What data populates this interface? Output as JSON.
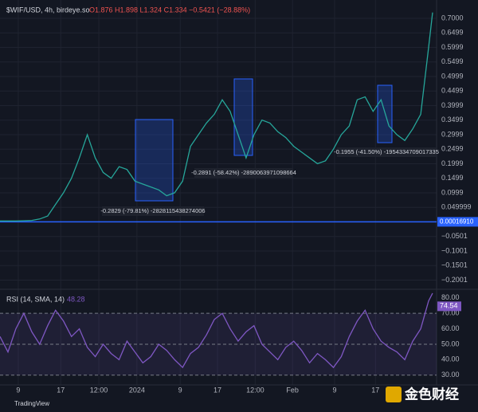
{
  "chart_data": {
    "type": "line",
    "title": "$WIF/USD, 4h, birdeye.so",
    "ohlc_text": "O1.876 H1.898 L1.324 C1.334 −0.5421 (−28.88%)",
    "x": [
      0,
      2,
      4,
      6,
      8,
      10,
      12,
      14,
      16,
      18,
      20,
      22,
      24,
      26,
      28,
      30,
      32,
      34,
      36,
      38,
      40,
      42,
      44,
      46,
      48,
      50,
      52,
      54,
      56,
      58,
      60,
      62,
      64,
      66,
      68,
      70,
      72,
      74,
      76,
      78,
      80,
      82,
      84,
      86,
      88,
      90,
      92,
      94,
      96,
      98,
      100,
      102,
      104,
      106,
      108,
      109
    ],
    "series": [
      {
        "name": "$WIF/USD",
        "color": "#26a69a",
        "values": [
          0.003,
          0.003,
          0.003,
          0.004,
          0.005,
          0.01,
          0.02,
          0.06,
          0.1,
          0.15,
          0.22,
          0.3,
          0.22,
          0.17,
          0.15,
          0.19,
          0.18,
          0.14,
          0.13,
          0.12,
          0.11,
          0.09,
          0.1,
          0.14,
          0.26,
          0.3,
          0.34,
          0.37,
          0.42,
          0.38,
          0.3,
          0.22,
          0.3,
          0.35,
          0.34,
          0.31,
          0.29,
          0.26,
          0.24,
          0.22,
          0.2,
          0.21,
          0.25,
          0.3,
          0.33,
          0.42,
          0.43,
          0.38,
          0.42,
          0.33,
          0.3,
          0.28,
          0.32,
          0.37,
          0.6,
          0.72
        ]
      },
      {
        "name": "RSI (14, SMA, 14)",
        "color": "#7e57c2",
        "axis": "y2",
        "values": [
          55,
          45,
          60,
          70,
          58,
          50,
          62,
          72,
          65,
          55,
          60,
          48,
          42,
          50,
          44,
          40,
          52,
          45,
          38,
          42,
          50,
          46,
          40,
          35,
          44,
          48,
          56,
          66,
          70,
          60,
          52,
          58,
          62,
          50,
          45,
          40,
          48,
          52,
          46,
          38,
          44,
          40,
          35,
          42,
          55,
          65,
          72,
          60,
          52,
          48,
          45,
          40,
          52,
          60,
          78,
          83
        ]
      }
    ],
    "rsi_value_label": "48.28",
    "xlim": [
      0,
      110
    ],
    "xticks": [
      {
        "value": 4.6,
        "label": "9"
      },
      {
        "value": 15.3,
        "label": "17"
      },
      {
        "value": 24.9,
        "label": "12:00"
      },
      {
        "value": 34.5,
        "label": "2024"
      },
      {
        "value": 45.4,
        "label": "9"
      },
      {
        "value": 54.8,
        "label": "17"
      },
      {
        "value": 64.3,
        "label": "12:00"
      },
      {
        "value": 73.7,
        "label": "Feb"
      },
      {
        "value": 84.3,
        "label": "9"
      },
      {
        "value": 94.6,
        "label": "17"
      }
    ],
    "ylim": [
      -0.229,
      0.763
    ],
    "yticks": [
      {
        "value": 0.7,
        "label": "0.7000"
      },
      {
        "value": 0.6499,
        "label": "0.6499"
      },
      {
        "value": 0.5999,
        "label": "0.5999"
      },
      {
        "value": 0.5499,
        "label": "0.5499"
      },
      {
        "value": 0.4999,
        "label": "0.4999"
      },
      {
        "value": 0.4499,
        "label": "0.4499"
      },
      {
        "value": 0.3999,
        "label": "0.3999"
      },
      {
        "value": 0.3499,
        "label": "0.3499"
      },
      {
        "value": 0.2999,
        "label": "0.2999"
      },
      {
        "value": 0.2499,
        "label": "0.2499"
      },
      {
        "value": 0.1999,
        "label": "0.1999"
      },
      {
        "value": 0.1499,
        "label": "0.1499"
      },
      {
        "value": 0.0999,
        "label": "0.0999"
      },
      {
        "value": 0.049999,
        "label": "0.049999"
      },
      {
        "value": -0.0501,
        "label": "−0.0501"
      },
      {
        "value": -0.1001,
        "label": "−0.1001"
      },
      {
        "value": -0.1501,
        "label": "−0.1501"
      },
      {
        "value": -0.2001,
        "label": "−0.2001"
      }
    ],
    "current_price": {
      "value": 0.0001691,
      "label": "0.00016910"
    },
    "y2lim": [
      23.7,
      84
    ],
    "y2ticks": [
      {
        "value": 80,
        "label": "80.00"
      },
      {
        "value": 70,
        "label": "70.00"
      },
      {
        "value": 60,
        "label": "60.00"
      },
      {
        "value": 50,
        "label": "50.00"
      },
      {
        "value": 40,
        "label": "40.00"
      },
      {
        "value": 30,
        "label": "30.00"
      }
    ],
    "rsi_marker": {
      "value": 74.54,
      "label": "74.54"
    },
    "annotations": [
      "-0.2829 (-79.81%) -2828115438274006",
      "-0.2891 (-58.42%) -2890063971098664",
      "-0.1955 (-41.50%) -1954334709017335"
    ],
    "footer": "TradingView",
    "watermark": "金色财经"
  }
}
